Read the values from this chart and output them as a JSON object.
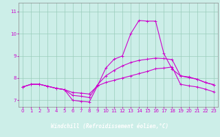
{
  "bg_color": "#cceee8",
  "grid_color": "#99ccbb",
  "line_color": "#cc00cc",
  "marker": "+",
  "markersize": 3,
  "linewidth": 0.8,
  "xlabel": "Windchill (Refroidissement éolien,°C)",
  "xlabel_fontsize": 5.5,
  "tick_fontsize": 5,
  "xlim": [
    -0.5,
    23.5
  ],
  "ylim": [
    6.7,
    11.4
  ],
  "yticks": [
    7,
    8,
    9,
    10,
    11
  ],
  "xticks": [
    0,
    1,
    2,
    3,
    4,
    5,
    6,
    7,
    8,
    9,
    10,
    11,
    12,
    13,
    14,
    15,
    16,
    17,
    18,
    19,
    20,
    21,
    22,
    23
  ],
  "series": [
    [
      7.6,
      7.72,
      7.72,
      7.63,
      7.54,
      7.48,
      7.0,
      6.95,
      6.92,
      7.65,
      8.45,
      8.85,
      9.0,
      10.0,
      10.6,
      10.57,
      10.57,
      9.1,
      8.4,
      8.1,
      8.05,
      7.95,
      7.8,
      7.7
    ],
    [
      7.6,
      7.72,
      7.72,
      7.63,
      7.54,
      7.48,
      7.22,
      7.18,
      7.12,
      7.7,
      8.1,
      8.35,
      8.55,
      8.7,
      8.8,
      8.85,
      8.9,
      8.88,
      8.83,
      8.1,
      8.02,
      7.95,
      7.8,
      7.7
    ],
    [
      7.6,
      7.72,
      7.72,
      7.63,
      7.54,
      7.48,
      7.35,
      7.32,
      7.28,
      7.65,
      7.8,
      7.9,
      8.0,
      8.1,
      8.2,
      8.3,
      8.42,
      8.45,
      8.5,
      7.72,
      7.65,
      7.6,
      7.5,
      7.38
    ]
  ]
}
